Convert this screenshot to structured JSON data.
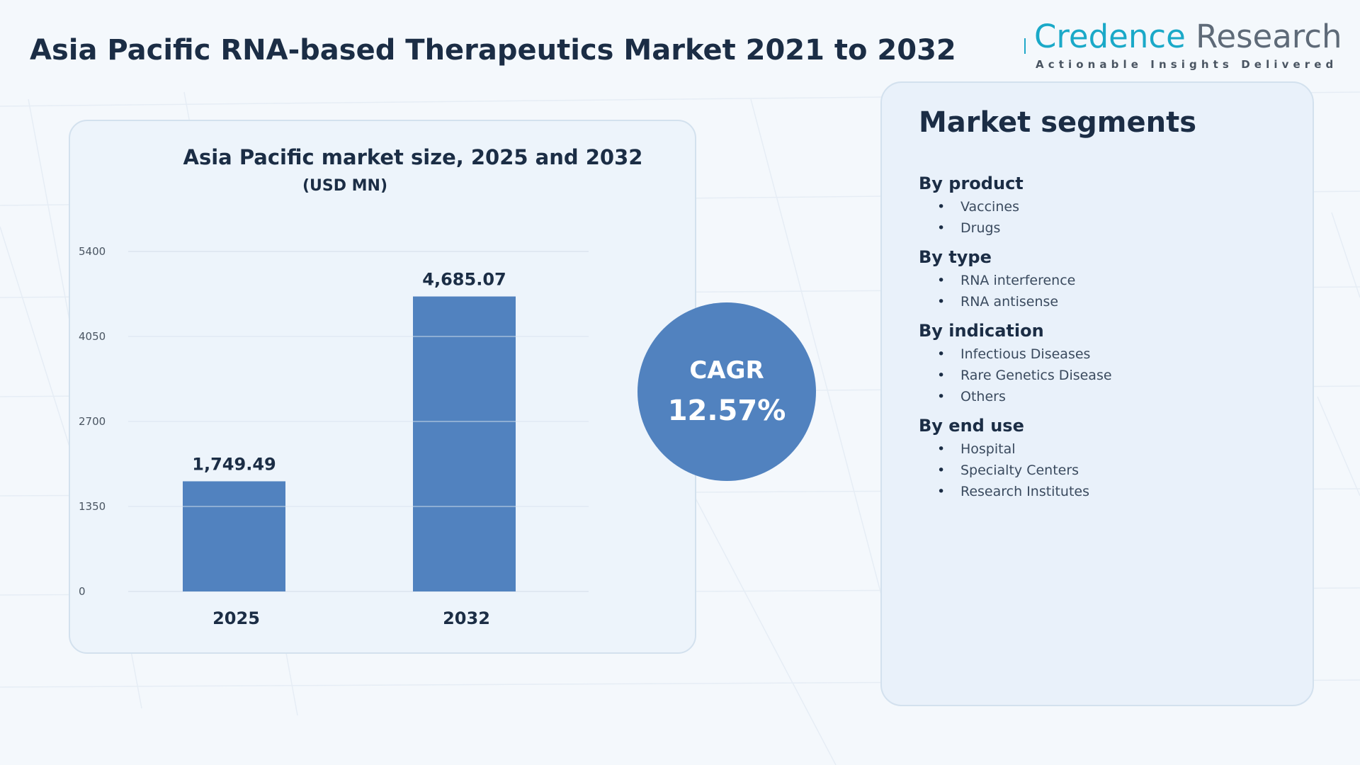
{
  "title": "Asia Pacific RNA-based Therapeutics Market 2021 to 2032",
  "logo": {
    "name_part1": "Credence",
    "name_part2": "Research",
    "tagline": "Actionable Insights Delivered"
  },
  "chart_data": {
    "type": "bar",
    "title": "Asia Pacific market size, 2025 and 2032",
    "subtitle": "(USD MN)",
    "categories": [
      "2025",
      "2032"
    ],
    "values": [
      1749.49,
      4685.07
    ],
    "value_labels": [
      "1,749.49",
      "4,685.07"
    ],
    "yticks": [
      0,
      1350,
      2700,
      4050,
      5400
    ],
    "ylim": [
      0,
      5400
    ],
    "grid": true,
    "bar_color": "#5182bf"
  },
  "cagr": {
    "label": "CAGR",
    "value": "12.57%"
  },
  "segments": {
    "title": "Market segments",
    "groups": [
      {
        "title": "By product",
        "items": [
          "Vaccines",
          "Drugs"
        ]
      },
      {
        "title": "By type",
        "items": [
          "RNA interference",
          "RNA antisense"
        ]
      },
      {
        "title": "By indication",
        "items": [
          "Infectious Diseases",
          "Rare Genetics Disease",
          "Others"
        ]
      },
      {
        "title": "By end use",
        "items": [
          "Hospital",
          "Specialty Centers",
          "Research Institutes"
        ]
      }
    ]
  }
}
